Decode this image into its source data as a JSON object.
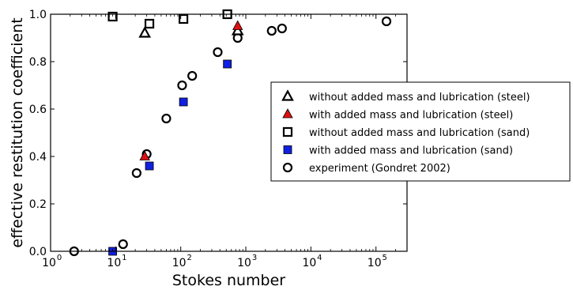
{
  "chart_data": {
    "type": "scatter",
    "title": "",
    "xlabel": "Stokes number",
    "ylabel": "effective restitution coefficient",
    "xscale": "log",
    "xlim": [
      1,
      300000
    ],
    "ylim": [
      0,
      1.0
    ],
    "x_ticks": [
      {
        "base": "10",
        "exp": "0",
        "value": 1
      },
      {
        "base": "10",
        "exp": "1",
        "value": 10
      },
      {
        "base": "10",
        "exp": "2",
        "value": 100
      },
      {
        "base": "10",
        "exp": "3",
        "value": 1000
      },
      {
        "base": "10",
        "exp": "4",
        "value": 10000
      },
      {
        "base": "10",
        "exp": "5",
        "value": 100000
      }
    ],
    "y_ticks": [
      "0.0",
      "0.2",
      "0.4",
      "0.6",
      "0.8",
      "1.0"
    ],
    "grid": false,
    "legend_position": "right",
    "series": [
      {
        "name": "without added mass and lubrication (steel)",
        "marker": "triangle-open",
        "color": "#000000",
        "x": [
          28,
          750
        ],
        "y": [
          0.92,
          0.93
        ]
      },
      {
        "name": "with added mass and lubrication (steel)",
        "marker": "triangle-filled",
        "color": "#e01010",
        "x": [
          28,
          750
        ],
        "y": [
          0.4,
          0.95
        ]
      },
      {
        "name": "without added mass and lubrication (sand)",
        "marker": "square-open",
        "color": "#000000",
        "x": [
          9,
          33,
          110,
          520
        ],
        "y": [
          0.99,
          0.96,
          0.98,
          1.0
        ]
      },
      {
        "name": "with added mass and lubrication (sand)",
        "marker": "square-filled",
        "color": "#1020e0",
        "x": [
          9,
          33,
          110,
          520
        ],
        "y": [
          0.0,
          0.36,
          0.63,
          0.79
        ]
      },
      {
        "name": "experiment (Gondret 2002)",
        "marker": "circle-open",
        "color": "#000000",
        "x": [
          2.3,
          13,
          21,
          30,
          60,
          105,
          150,
          370,
          750,
          2500,
          3600,
          145000
        ],
        "y": [
          0.0,
          0.03,
          0.33,
          0.41,
          0.56,
          0.7,
          0.74,
          0.84,
          0.9,
          0.93,
          0.94,
          0.97
        ]
      }
    ]
  }
}
